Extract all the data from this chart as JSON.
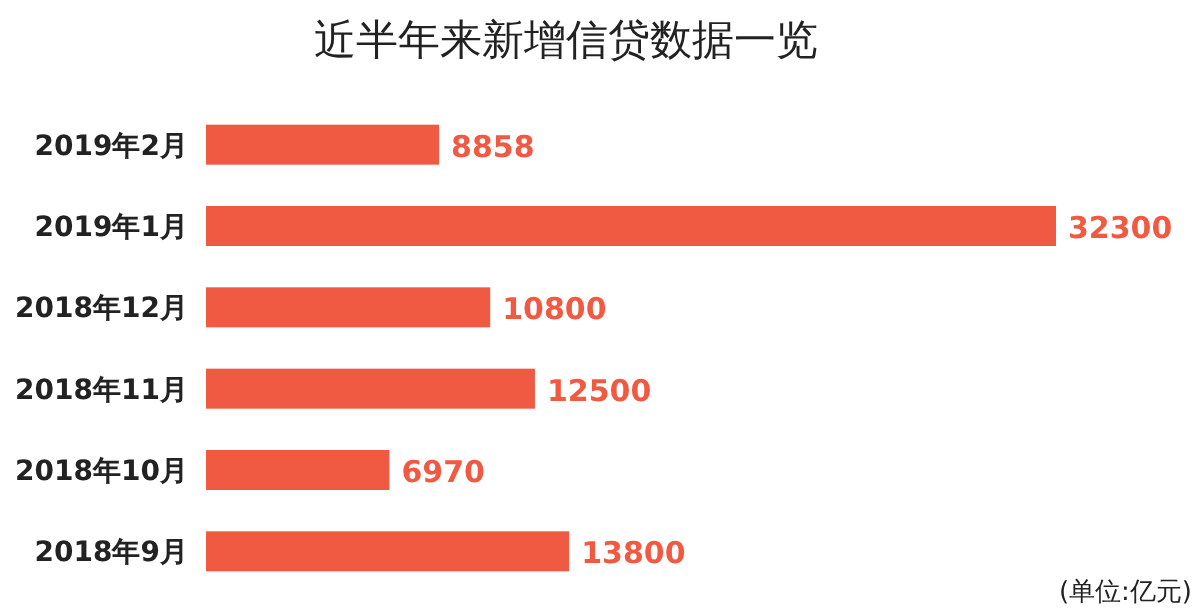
{
  "chart_data": {
    "type": "bar",
    "orientation": "horizontal",
    "title": "近半年来新增信贷数据一览",
    "categories": [
      "2019年2月",
      "2019年1月",
      "2018年12月",
      "2018年11月",
      "2018年10月",
      "2018年9月"
    ],
    "values": [
      8858,
      32300,
      10800,
      12500,
      6970,
      13800
    ],
    "color": "#f15a42",
    "data_labels": true,
    "annotations": [
      "(单位:亿元)"
    ]
  }
}
